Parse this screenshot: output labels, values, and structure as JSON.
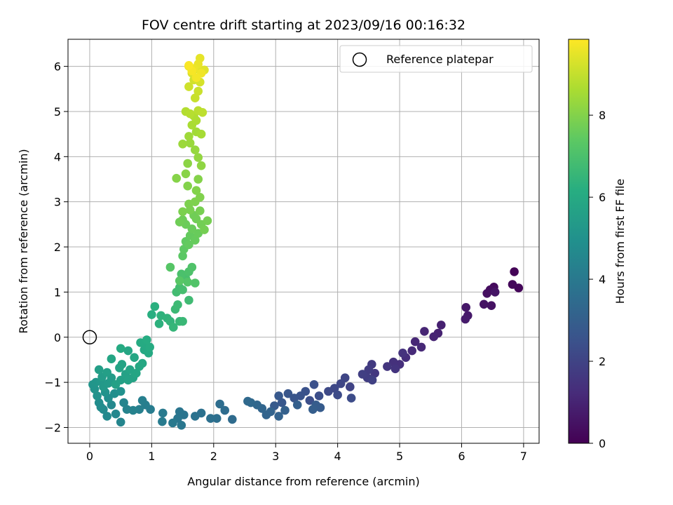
{
  "chart_data": {
    "type": "scatter",
    "title": "FOV centre drift starting at 2023/09/16 00:16:32",
    "xlabel": "Angular distance from reference (arcmin)",
    "ylabel": "Rotation from reference (arcmin)",
    "xlim": [
      -0.35,
      7.25
    ],
    "ylim": [
      -2.35,
      6.6
    ],
    "xticks": [
      0,
      1,
      2,
      3,
      4,
      5,
      6,
      7
    ],
    "yticks": [
      -2,
      -1,
      0,
      1,
      2,
      3,
      4,
      5,
      6
    ],
    "grid": true,
    "legend": {
      "placement": "top-right",
      "entries": [
        "Reference platepar"
      ]
    },
    "reference_point": {
      "x": 0,
      "y": 0,
      "label": "Reference platepar"
    },
    "colorbar": {
      "label": "Hours from first FF file",
      "range": [
        0,
        9.85
      ],
      "ticks": [
        0,
        2,
        4,
        6,
        8
      ],
      "colormap": "viridis"
    },
    "points": [
      [
        6.85,
        1.45,
        0.1
      ],
      [
        6.92,
        1.09,
        0.15
      ],
      [
        6.82,
        1.17,
        0.2
      ],
      [
        6.52,
        1.11,
        0.3
      ],
      [
        6.46,
        1.05,
        0.35
      ],
      [
        6.41,
        0.97,
        0.4
      ],
      [
        6.48,
        0.7,
        0.45
      ],
      [
        6.36,
        0.73,
        0.5
      ],
      [
        6.54,
        1.0,
        0.55
      ],
      [
        6.07,
        0.66,
        0.65
      ],
      [
        6.1,
        0.48,
        0.7
      ],
      [
        6.06,
        0.4,
        0.75
      ],
      [
        5.67,
        0.27,
        0.9
      ],
      [
        5.62,
        0.09,
        0.95
      ],
      [
        5.55,
        0.01,
        1.0
      ],
      [
        5.4,
        0.13,
        1.05
      ],
      [
        5.25,
        -0.1,
        1.1
      ],
      [
        5.35,
        -0.22,
        1.15
      ],
      [
        5.2,
        -0.3,
        1.2
      ],
      [
        5.1,
        -0.45,
        1.3
      ],
      [
        5.0,
        -0.6,
        1.35
      ],
      [
        4.9,
        -0.55,
        1.4
      ],
      [
        5.05,
        -0.35,
        1.45
      ],
      [
        4.93,
        -0.7,
        1.5
      ],
      [
        4.8,
        -0.65,
        1.55
      ],
      [
        4.6,
        -0.8,
        1.6
      ],
      [
        4.55,
        -0.6,
        1.7
      ],
      [
        4.5,
        -0.72,
        1.75
      ],
      [
        4.48,
        -0.9,
        1.8
      ],
      [
        4.4,
        -0.82,
        1.85
      ],
      [
        4.56,
        -0.95,
        1.9
      ],
      [
        4.2,
        -1.1,
        2.0
      ],
      [
        4.12,
        -0.9,
        2.05
      ],
      [
        4.05,
        -1.03,
        2.1
      ],
      [
        3.95,
        -1.13,
        2.15
      ],
      [
        3.85,
        -1.2,
        2.2
      ],
      [
        4.0,
        -1.28,
        2.25
      ],
      [
        4.22,
        -1.35,
        2.3
      ],
      [
        3.7,
        -1.3,
        2.35
      ],
      [
        3.55,
        -1.4,
        2.4
      ],
      [
        3.62,
        -1.05,
        2.45
      ],
      [
        3.48,
        -1.2,
        2.5
      ],
      [
        3.4,
        -1.3,
        2.55
      ],
      [
        3.3,
        -1.35,
        2.6
      ],
      [
        3.2,
        -1.25,
        2.65
      ],
      [
        3.1,
        -1.45,
        2.7
      ],
      [
        3.05,
        -1.3,
        2.75
      ],
      [
        2.98,
        -1.52,
        2.8
      ],
      [
        3.72,
        -1.56,
        2.85
      ],
      [
        3.65,
        -1.5,
        2.9
      ],
      [
        3.6,
        -1.6,
        2.95
      ],
      [
        3.35,
        -1.5,
        3.0
      ],
      [
        3.15,
        -1.62,
        3.05
      ],
      [
        3.05,
        -1.75,
        3.1
      ],
      [
        2.92,
        -1.65,
        3.15
      ],
      [
        2.85,
        -1.72,
        3.2
      ],
      [
        2.78,
        -1.58,
        3.25
      ],
      [
        2.7,
        -1.5,
        3.3
      ],
      [
        2.6,
        -1.45,
        3.35
      ],
      [
        2.55,
        -1.42,
        3.4
      ],
      [
        2.3,
        -1.82,
        3.45
      ],
      [
        2.18,
        -1.62,
        3.5
      ],
      [
        2.1,
        -1.48,
        3.55
      ],
      [
        2.05,
        -1.8,
        3.6
      ],
      [
        1.95,
        -1.8,
        3.65
      ],
      [
        1.8,
        -1.68,
        3.7
      ],
      [
        1.7,
        -1.75,
        3.75
      ],
      [
        1.52,
        -1.72,
        3.8
      ],
      [
        1.45,
        -1.65,
        3.85
      ],
      [
        1.42,
        -1.8,
        3.9
      ],
      [
        1.48,
        -1.95,
        3.95
      ],
      [
        1.34,
        -1.9,
        4.0
      ],
      [
        1.18,
        -1.68,
        4.05
      ],
      [
        1.17,
        -1.87,
        4.1
      ],
      [
        0.98,
        -1.6,
        4.15
      ],
      [
        0.9,
        -1.5,
        4.2
      ],
      [
        0.85,
        -1.4,
        4.25
      ],
      [
        0.8,
        -1.6,
        4.3
      ],
      [
        0.7,
        -1.62,
        4.35
      ],
      [
        0.6,
        -1.6,
        4.4
      ],
      [
        0.55,
        -1.45,
        4.45
      ],
      [
        0.5,
        -1.88,
        4.5
      ],
      [
        0.42,
        -1.7,
        4.55
      ],
      [
        0.35,
        -1.5,
        4.6
      ],
      [
        0.28,
        -1.75,
        4.65
      ],
      [
        0.22,
        -1.6,
        4.7
      ],
      [
        0.18,
        -1.55,
        4.75
      ],
      [
        0.15,
        -1.45,
        4.8
      ],
      [
        0.3,
        -1.35,
        4.85
      ],
      [
        0.4,
        -1.25,
        4.9
      ],
      [
        0.5,
        -1.2,
        4.95
      ],
      [
        0.25,
        -1.22,
        5.0
      ],
      [
        0.12,
        -1.3,
        5.05
      ],
      [
        0.08,
        -1.15,
        5.1
      ],
      [
        0.05,
        -1.05,
        5.15
      ],
      [
        0.1,
        -1.0,
        5.2
      ],
      [
        0.18,
        -0.98,
        5.25
      ],
      [
        0.22,
        -1.1,
        5.3
      ],
      [
        0.3,
        -1.02,
        5.35
      ],
      [
        0.35,
        -0.9,
        5.4
      ],
      [
        0.2,
        -0.88,
        5.45
      ],
      [
        0.15,
        -0.72,
        5.5
      ],
      [
        0.28,
        -0.78,
        5.55
      ],
      [
        0.42,
        -1.05,
        5.6
      ],
      [
        0.5,
        -0.95,
        5.62
      ],
      [
        0.58,
        -0.82,
        5.65
      ],
      [
        0.62,
        -0.95,
        5.68
      ],
      [
        0.7,
        -0.9,
        5.7
      ],
      [
        0.48,
        -0.68,
        5.72
      ],
      [
        0.52,
        -0.6,
        5.75
      ],
      [
        0.65,
        -0.72,
        5.78
      ],
      [
        0.75,
        -0.8,
        5.8
      ],
      [
        0.35,
        -0.48,
        5.82
      ],
      [
        0.62,
        -0.3,
        5.85
      ],
      [
        0.72,
        -0.45,
        5.88
      ],
      [
        0.8,
        -0.65,
        5.9
      ],
      [
        0.85,
        -0.58,
        5.92
      ],
      [
        0.88,
        -0.28,
        5.95
      ],
      [
        0.95,
        -0.35,
        5.98
      ],
      [
        0.92,
        -0.2,
        6.0
      ],
      [
        0.5,
        -0.25,
        6.02
      ],
      [
        0.82,
        -0.12,
        6.05
      ],
      [
        0.97,
        -0.22,
        6.08
      ],
      [
        0.92,
        -0.06,
        6.1
      ],
      [
        1.0,
        0.5,
        6.2
      ],
      [
        1.05,
        0.68,
        6.25
      ],
      [
        1.12,
        0.3,
        6.3
      ],
      [
        1.15,
        0.48,
        6.35
      ],
      [
        1.25,
        0.42,
        6.4
      ],
      [
        1.3,
        0.35,
        6.45
      ],
      [
        1.35,
        0.22,
        6.5
      ],
      [
        1.45,
        0.35,
        6.55
      ],
      [
        1.5,
        0.35,
        6.6
      ],
      [
        1.38,
        0.62,
        6.65
      ],
      [
        1.42,
        0.72,
        6.7
      ],
      [
        1.6,
        0.82,
        6.75
      ],
      [
        1.4,
        1.0,
        6.8
      ],
      [
        1.45,
        1.1,
        6.85
      ],
      [
        1.5,
        1.05,
        6.9
      ],
      [
        1.55,
        1.3,
        6.95
      ],
      [
        1.48,
        1.4,
        7.0
      ],
      [
        1.6,
        1.45,
        7.05
      ],
      [
        1.65,
        1.55,
        7.1
      ],
      [
        1.7,
        1.2,
        7.15
      ],
      [
        1.58,
        1.22,
        7.2
      ],
      [
        1.3,
        1.55,
        7.25
      ],
      [
        1.45,
        1.25,
        7.3
      ],
      [
        1.5,
        1.8,
        7.35
      ],
      [
        1.52,
        1.95,
        7.4
      ],
      [
        1.55,
        2.12,
        7.45
      ],
      [
        1.6,
        2.05,
        7.5
      ],
      [
        1.62,
        2.25,
        7.52
      ],
      [
        1.7,
        2.15,
        7.55
      ],
      [
        1.75,
        2.3,
        7.58
      ],
      [
        1.65,
        2.4,
        7.6
      ],
      [
        1.55,
        2.5,
        7.62
      ],
      [
        1.5,
        2.6,
        7.65
      ],
      [
        1.45,
        2.55,
        7.68
      ],
      [
        1.68,
        2.7,
        7.7
      ],
      [
        1.72,
        2.62,
        7.72
      ],
      [
        1.8,
        2.5,
        7.75
      ],
      [
        1.85,
        2.38,
        7.78
      ],
      [
        1.9,
        2.58,
        7.8
      ],
      [
        1.78,
        2.8,
        7.82
      ],
      [
        1.62,
        2.82,
        7.85
      ],
      [
        1.5,
        2.78,
        7.88
      ],
      [
        1.6,
        2.95,
        7.9
      ],
      [
        1.7,
        3.0,
        7.92
      ],
      [
        1.78,
        3.1,
        7.95
      ],
      [
        1.72,
        3.25,
        7.98
      ],
      [
        1.58,
        3.35,
        8.0
      ],
      [
        1.75,
        3.5,
        8.02
      ],
      [
        1.4,
        3.52,
        8.05
      ],
      [
        1.55,
        3.62,
        8.08
      ],
      [
        1.58,
        3.85,
        8.15
      ],
      [
        1.8,
        3.8,
        8.2
      ],
      [
        1.75,
        3.98,
        8.25
      ],
      [
        1.7,
        4.15,
        8.3
      ],
      [
        1.62,
        4.3,
        8.35
      ],
      [
        1.5,
        4.28,
        8.4
      ],
      [
        1.6,
        4.45,
        8.45
      ],
      [
        1.72,
        4.55,
        8.5
      ],
      [
        1.8,
        4.5,
        8.55
      ],
      [
        1.65,
        4.7,
        8.6
      ],
      [
        1.72,
        4.8,
        8.65
      ],
      [
        1.68,
        4.9,
        8.7
      ],
      [
        1.55,
        5.0,
        8.75
      ],
      [
        1.62,
        4.95,
        8.8
      ],
      [
        1.75,
        5.02,
        8.85
      ],
      [
        1.82,
        4.98,
        8.9
      ],
      [
        1.7,
        5.3,
        9.05
      ],
      [
        1.75,
        5.45,
        9.1
      ],
      [
        1.6,
        5.55,
        9.15
      ],
      [
        1.68,
        5.7,
        9.2
      ],
      [
        1.78,
        5.65,
        9.25
      ],
      [
        1.65,
        5.85,
        9.3
      ],
      [
        1.72,
        5.95,
        9.35
      ],
      [
        1.85,
        5.92,
        9.4
      ],
      [
        1.6,
        6.0,
        9.45
      ],
      [
        1.78,
        6.18,
        9.5
      ],
      [
        1.75,
        6.05,
        9.55
      ],
      [
        1.68,
        5.95,
        9.6
      ],
      [
        1.8,
        5.85,
        9.65
      ],
      [
        1.72,
        5.75,
        9.7
      ],
      [
        1.65,
        5.9,
        9.75
      ],
      [
        1.6,
        6.02,
        9.8
      ]
    ]
  }
}
